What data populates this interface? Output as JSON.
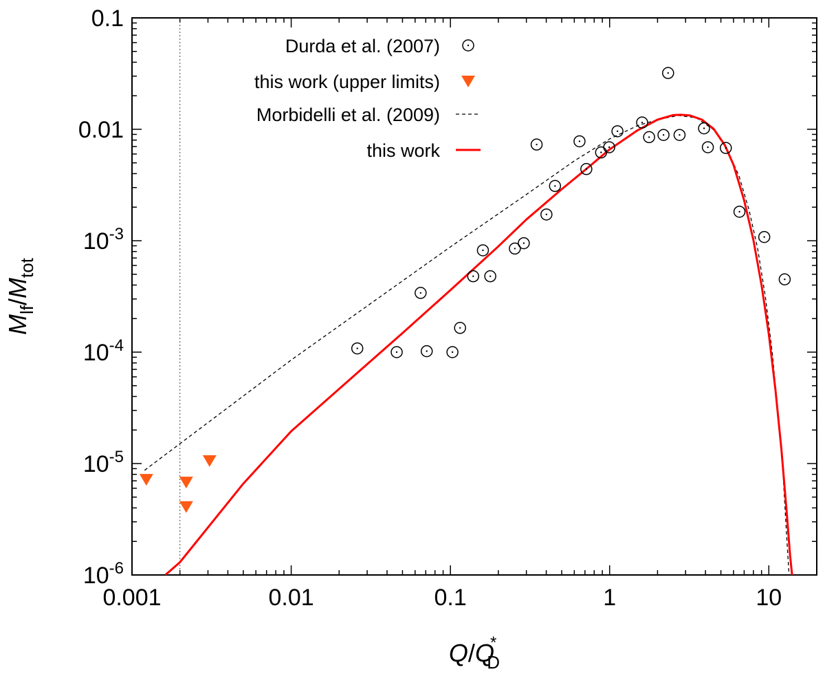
{
  "chart_data": {
    "type": "scatter",
    "xscale": "log",
    "yscale": "log",
    "xlim": [
      0.001,
      20
    ],
    "ylim": [
      1e-06,
      0.1
    ],
    "x_ticks": [
      {
        "value": 0.001,
        "label": "0.001"
      },
      {
        "value": 0.01,
        "label": "0.01"
      },
      {
        "value": 0.1,
        "label": "0.1"
      },
      {
        "value": 1,
        "label": "1"
      },
      {
        "value": 10,
        "label": "10"
      }
    ],
    "y_ticks": [
      {
        "value": 1e-06,
        "base": "10",
        "exp": "-6",
        "text": ""
      },
      {
        "value": 1e-05,
        "base": "10",
        "exp": "-5",
        "text": ""
      },
      {
        "value": 0.0001,
        "base": "10",
        "exp": "-4",
        "text": ""
      },
      {
        "value": 0.001,
        "base": "10",
        "exp": "-3",
        "text": ""
      },
      {
        "value": 0.01,
        "base": "",
        "exp": "",
        "text": "0.01"
      },
      {
        "value": 0.1,
        "base": "",
        "exp": "",
        "text": "0.1"
      }
    ],
    "xlabel": {
      "main": "Q",
      "slash": "/",
      "main2": "Q",
      "sup": "*",
      "sub": "D"
    },
    "ylabel": {
      "main": "M",
      "sub": "lf",
      "slash": "/",
      "main2": "M",
      "sub2": "tot"
    },
    "reference_line_x": 0.002,
    "legend_position": "top-center",
    "series": [
      {
        "name": "Durda et al. (2007)",
        "kind": "open-circle-dot",
        "color": "#000000",
        "points": [
          [
            0.026,
            0.000108
          ],
          [
            0.046,
            0.0001
          ],
          [
            0.071,
            0.000102
          ],
          [
            0.065,
            0.00034
          ],
          [
            0.103,
            0.0001
          ],
          [
            0.115,
            0.000165
          ],
          [
            0.139,
            0.00048
          ],
          [
            0.16,
            0.00082
          ],
          [
            0.178,
            0.00048
          ],
          [
            0.254,
            0.00085
          ],
          [
            0.289,
            0.00095
          ],
          [
            0.348,
            0.0073
          ],
          [
            0.401,
            0.00172
          ],
          [
            0.454,
            0.0031
          ],
          [
            0.647,
            0.0078
          ],
          [
            0.714,
            0.0044
          ],
          [
            0.884,
            0.0062
          ],
          [
            0.994,
            0.0069
          ],
          [
            1.12,
            0.0096
          ],
          [
            1.6,
            0.0115
          ],
          [
            1.77,
            0.0085
          ],
          [
            2.18,
            0.0089
          ],
          [
            2.33,
            0.032
          ],
          [
            2.75,
            0.0089
          ],
          [
            3.92,
            0.0102
          ],
          [
            4.14,
            0.0069
          ],
          [
            5.37,
            0.0068
          ],
          [
            6.54,
            0.00182
          ],
          [
            9.36,
            0.00108
          ],
          [
            12.58,
            0.00045
          ]
        ]
      },
      {
        "name": "this work (upper limits)",
        "kind": "down-triangle",
        "color": "#ff5a14",
        "points": [
          [
            0.00123,
            7.2e-06
          ],
          [
            0.00219,
            6.8e-06
          ],
          [
            0.00219,
            4.1e-06
          ],
          [
            0.00307,
            1.06e-05
          ]
        ]
      },
      {
        "name": "Morbidelli et al. (2009)",
        "kind": "dashed-line",
        "color": "#000000",
        "points": [
          [
            0.0012,
            8.7e-06
          ],
          [
            0.01,
            8.5e-05
          ],
          [
            0.1,
            0.00088
          ],
          [
            0.3,
            0.0026
          ],
          [
            0.6,
            0.0052
          ],
          [
            1.0,
            0.0082
          ],
          [
            1.5,
            0.0108
          ],
          [
            2.0,
            0.0122
          ],
          [
            2.7,
            0.0133
          ],
          [
            3.5,
            0.0127
          ],
          [
            4.5,
            0.0099
          ],
          [
            5.5,
            0.0065
          ],
          [
            6.5,
            0.0038
          ],
          [
            7.5,
            0.0019
          ],
          [
            8.5,
            0.00086
          ],
          [
            9.5,
            0.00032
          ],
          [
            10.5,
            0.0001
          ],
          [
            11.5,
            2.6e-05
          ],
          [
            12.3,
            7.8e-06
          ],
          [
            13.0,
            2e-06
          ],
          [
            13.4,
            1e-06
          ]
        ]
      },
      {
        "name": "this work",
        "kind": "solid-line",
        "color": "#ff0000",
        "points": [
          [
            0.00162,
            1e-06
          ],
          [
            0.002,
            1.3e-06
          ],
          [
            0.005,
            6.6e-06
          ],
          [
            0.01,
            1.95e-05
          ],
          [
            0.03,
            7.8e-05
          ],
          [
            0.05,
            0.000148
          ],
          [
            0.1,
            0.00036
          ],
          [
            0.2,
            0.00089
          ],
          [
            0.3,
            0.00155
          ],
          [
            0.5,
            0.0029
          ],
          [
            0.7,
            0.0043
          ],
          [
            1.0,
            0.0066
          ],
          [
            1.5,
            0.0098
          ],
          [
            2.0,
            0.0122
          ],
          [
            2.5,
            0.0134
          ],
          [
            2.8,
            0.0135
          ],
          [
            3.2,
            0.0133
          ],
          [
            3.8,
            0.0122
          ],
          [
            4.5,
            0.0101
          ],
          [
            5.3,
            0.0072
          ],
          [
            6.0,
            0.0048
          ],
          [
            7.0,
            0.0023
          ],
          [
            8.0,
            0.00102
          ],
          [
            9.0,
            0.0004
          ],
          [
            10.0,
            0.000145
          ],
          [
            11.0,
            4.6e-05
          ],
          [
            12.0,
            1.34e-05
          ],
          [
            13.0,
            3.4e-06
          ],
          [
            13.6,
            1.5e-06
          ],
          [
            14.0,
            1e-06
          ]
        ]
      }
    ]
  }
}
